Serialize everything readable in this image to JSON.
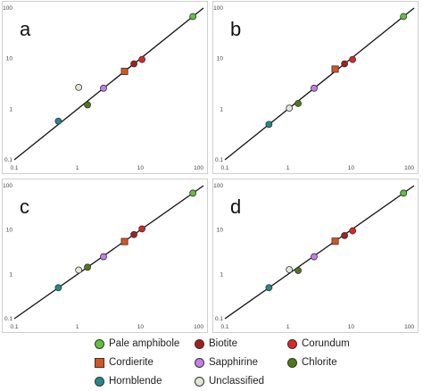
{
  "chart_data": [
    {
      "type": "scatter",
      "panel_label": "a",
      "log_axes": true,
      "xlim": [
        0.1,
        100
      ],
      "ylim": [
        0.1,
        100
      ],
      "x_ticks": [
        "0.1",
        "1",
        "10",
        "100"
      ],
      "y_ticks": [
        "0.1",
        "1",
        "10",
        "100"
      ],
      "reference_line": "1:1",
      "points": [
        {
          "mineral": "Hornblende",
          "x": 0.5,
          "y": 0.58
        },
        {
          "mineral": "Unclassified",
          "x": 1.05,
          "y": 2.7
        },
        {
          "mineral": "Chlorite",
          "x": 1.45,
          "y": 1.22
        },
        {
          "mineral": "Sapphirine",
          "x": 2.6,
          "y": 2.6
        },
        {
          "mineral": "Cordierite",
          "x": 5.6,
          "y": 5.6
        },
        {
          "mineral": "Biotite",
          "x": 7.9,
          "y": 7.9
        },
        {
          "mineral": "Corundum",
          "x": 10.6,
          "y": 9.6
        },
        {
          "mineral": "Pale amphibole",
          "x": 68,
          "y": 68
        }
      ]
    },
    {
      "type": "scatter",
      "panel_label": "b",
      "log_axes": true,
      "xlim": [
        0.1,
        100
      ],
      "ylim": [
        0.1,
        100
      ],
      "x_ticks": [
        "0.1",
        "1",
        "10",
        "100"
      ],
      "y_ticks": [
        "0.1",
        "1",
        "10",
        "100"
      ],
      "reference_line": "1:1",
      "points": [
        {
          "mineral": "Hornblende",
          "x": 0.5,
          "y": 0.5
        },
        {
          "mineral": "Unclassified",
          "x": 1.05,
          "y": 1.05
        },
        {
          "mineral": "Chlorite",
          "x": 1.45,
          "y": 1.3
        },
        {
          "mineral": "Sapphirine",
          "x": 2.6,
          "y": 2.6
        },
        {
          "mineral": "Cordierite",
          "x": 5.6,
          "y": 6.2
        },
        {
          "mineral": "Biotite",
          "x": 7.9,
          "y": 7.9
        },
        {
          "mineral": "Corundum",
          "x": 10.6,
          "y": 9.6
        },
        {
          "mineral": "Pale amphibole",
          "x": 68,
          "y": 68
        }
      ]
    },
    {
      "type": "scatter",
      "panel_label": "c",
      "log_axes": true,
      "xlim": [
        0.1,
        100
      ],
      "ylim": [
        0.1,
        100
      ],
      "x_ticks": [
        "0.1",
        "1",
        "10",
        "100"
      ],
      "y_ticks": [
        "0.1",
        "1",
        "10",
        "100"
      ],
      "reference_line": "1:1",
      "points": [
        {
          "mineral": "Hornblende",
          "x": 0.5,
          "y": 0.5
        },
        {
          "mineral": "Unclassified",
          "x": 1.05,
          "y": 1.25
        },
        {
          "mineral": "Chlorite",
          "x": 1.45,
          "y": 1.45
        },
        {
          "mineral": "Sapphirine",
          "x": 2.6,
          "y": 2.5
        },
        {
          "mineral": "Cordierite",
          "x": 5.6,
          "y": 5.5
        },
        {
          "mineral": "Biotite",
          "x": 7.9,
          "y": 7.9
        },
        {
          "mineral": "Corundum",
          "x": 10.6,
          "y": 10.6
        },
        {
          "mineral": "Pale amphibole",
          "x": 68,
          "y": 68
        }
      ]
    },
    {
      "type": "scatter",
      "panel_label": "d",
      "log_axes": true,
      "xlim": [
        0.1,
        100
      ],
      "ylim": [
        0.1,
        100
      ],
      "x_ticks": [
        "0.1",
        "1",
        "10",
        "100"
      ],
      "y_ticks": [
        "0.1",
        "1",
        "10",
        "100"
      ],
      "reference_line": "1:1",
      "points": [
        {
          "mineral": "Hornblende",
          "x": 0.5,
          "y": 0.5
        },
        {
          "mineral": "Unclassified",
          "x": 1.05,
          "y": 1.28
        },
        {
          "mineral": "Chlorite",
          "x": 1.45,
          "y": 1.22
        },
        {
          "mineral": "Sapphirine",
          "x": 2.6,
          "y": 2.5
        },
        {
          "mineral": "Cordierite",
          "x": 5.6,
          "y": 5.6
        },
        {
          "mineral": "Biotite",
          "x": 7.9,
          "y": 7.5
        },
        {
          "mineral": "Corundum",
          "x": 10.6,
          "y": 9.6
        },
        {
          "mineral": "Pale amphibole",
          "x": 68,
          "y": 68
        }
      ]
    }
  ],
  "legend": [
    {
      "label": "Pale amphibole",
      "color": "#5ec33a",
      "shape": "circle"
    },
    {
      "label": "Biotite",
      "color": "#a81c1c",
      "shape": "circle"
    },
    {
      "label": "Corundum",
      "color": "#e02424",
      "shape": "circle"
    },
    {
      "label": "Cordierite",
      "color": "#d9531e",
      "shape": "square"
    },
    {
      "label": "Sapphirine",
      "color": "#c77ded",
      "shape": "circle"
    },
    {
      "label": "Chlorite",
      "color": "#4f7a17",
      "shape": "circle"
    },
    {
      "label": "Hornblende",
      "color": "#24888f",
      "shape": "circle"
    },
    {
      "label": "Unclassified",
      "color": "#dfe8d6",
      "shape": "circle"
    }
  ],
  "colors": {
    "panel_border": "#cfcfcf",
    "reference_line": "#111111",
    "marker_outline": "#333333",
    "tick_text": "#444444"
  }
}
